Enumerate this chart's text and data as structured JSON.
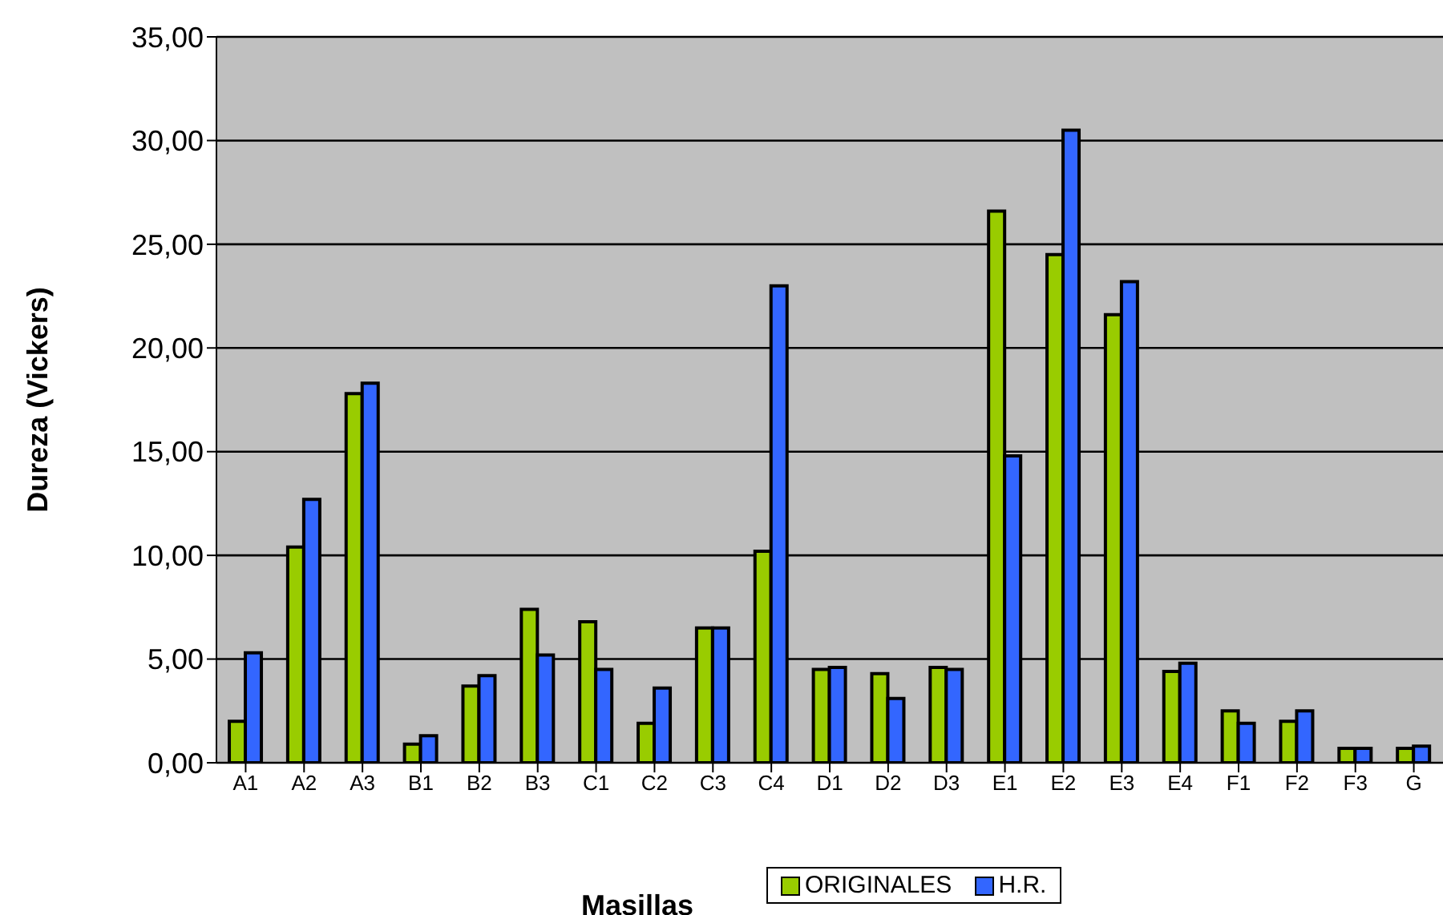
{
  "chart_data": {
    "type": "bar",
    "xlabel": "Masillas",
    "ylabel": "Dureza (Vickers)",
    "categories": [
      "A1",
      "A2",
      "A3",
      "B1",
      "B2",
      "B3",
      "C1",
      "C2",
      "C3",
      "C4",
      "D1",
      "D2",
      "D3",
      "E1",
      "E2",
      "E3",
      "E4",
      "F1",
      "F2",
      "F3",
      "G"
    ],
    "series": [
      {
        "name": "ORIGINALES",
        "color": "#99cc00",
        "values": [
          2.0,
          10.4,
          17.8,
          0.9,
          3.7,
          7.4,
          6.8,
          1.9,
          6.5,
          10.2,
          4.5,
          4.3,
          4.6,
          26.6,
          24.5,
          21.6,
          4.4,
          2.5,
          2.0,
          0.7,
          0.7
        ]
      },
      {
        "name": "H.R.",
        "color": "#3366ff",
        "values": [
          5.3,
          12.7,
          18.3,
          1.3,
          4.2,
          5.2,
          4.5,
          3.6,
          6.5,
          23.0,
          4.6,
          3.1,
          4.5,
          14.8,
          30.5,
          23.2,
          4.8,
          1.9,
          2.5,
          0.7,
          0.8
        ]
      }
    ],
    "ylim": [
      0,
      35
    ],
    "yticks": [
      {
        "value": 0,
        "label": "0,00"
      },
      {
        "value": 5,
        "label": "5,00"
      },
      {
        "value": 10,
        "label": "10,00"
      },
      {
        "value": 15,
        "label": "15,00"
      },
      {
        "value": 20,
        "label": "20,00"
      },
      {
        "value": 25,
        "label": "25,00"
      },
      {
        "value": 30,
        "label": "30,00"
      },
      {
        "value": 35,
        "label": "35,00"
      }
    ],
    "grid": "y",
    "legend": "bottom"
  }
}
